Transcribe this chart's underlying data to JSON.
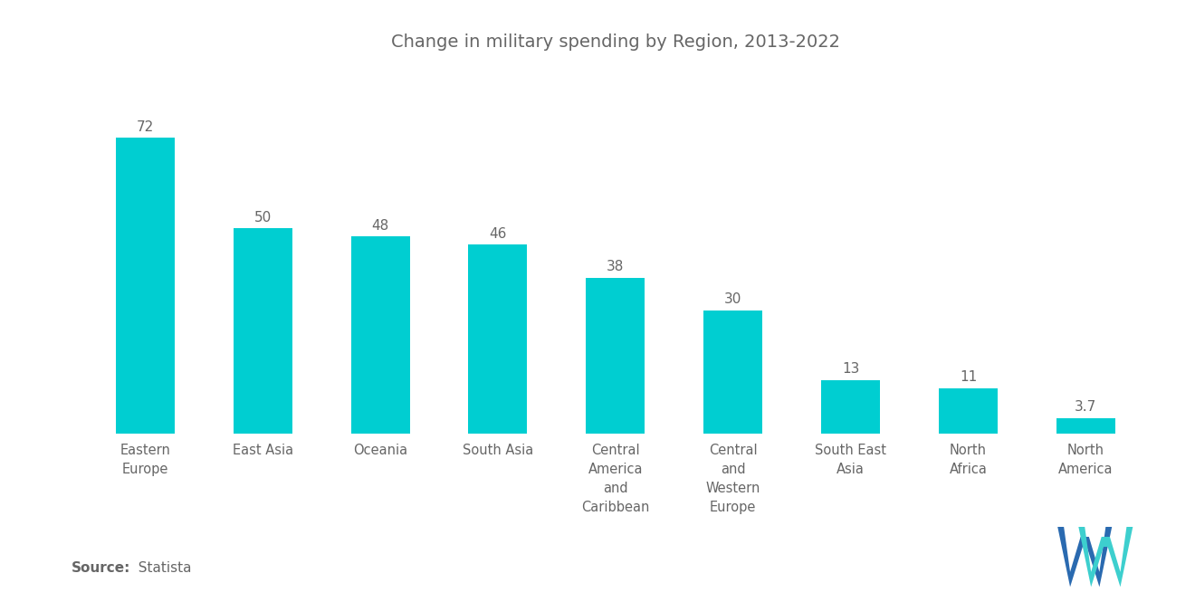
{
  "title": "Change in military spending by Region, 2013-2022",
  "categories": [
    "Eastern\nEurope",
    "East Asia",
    "Oceania",
    "South Asia",
    "Central\nAmerica\nand\nCaribbean",
    "Central\nand\nWestern\nEurope",
    "South East\nAsia",
    "North\nAfrica",
    "North\nAmerica"
  ],
  "values": [
    72,
    50,
    48,
    46,
    38,
    30,
    13,
    11,
    3.7
  ],
  "bar_color": "#00CED1",
  "background_color": "#ffffff",
  "value_labels": [
    "72",
    "50",
    "48",
    "46",
    "38",
    "30",
    "13",
    "11",
    "3.7"
  ],
  "source_bold": "Source:",
  "source_normal": "  Statista",
  "title_fontsize": 14,
  "label_fontsize": 10.5,
  "value_fontsize": 11,
  "source_fontsize": 11,
  "ylim": [
    0,
    88
  ],
  "bar_width": 0.5,
  "logo_blue": "#2a6ab0",
  "logo_teal": "#3dcfce",
  "text_color": "#666666"
}
